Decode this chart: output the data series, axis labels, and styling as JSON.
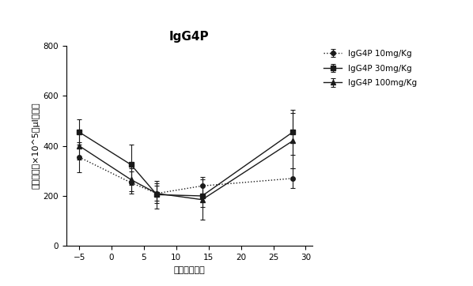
{
  "title": "IgG4P",
  "xlabel": "注入後の日数",
  "ylabel": "血小板数（×10^5／μl血液）",
  "x": [
    -5,
    3,
    7,
    14,
    28
  ],
  "series": [
    {
      "label": "IgG4P 10mg/Kg",
      "y": [
        355,
        253,
        210,
        240,
        270
      ],
      "yerr": [
        60,
        45,
        30,
        35,
        40
      ],
      "color": "#1a1a1a",
      "marker": "o",
      "linestyle": "dotted"
    },
    {
      "label": "IgG4P 30mg/Kg",
      "y": [
        455,
        325,
        205,
        200,
        455
      ],
      "yerr": [
        50,
        80,
        55,
        45,
        90
      ],
      "color": "#1a1a1a",
      "marker": "s",
      "linestyle": "solid"
    },
    {
      "label": "IgG4P 100mg/Kg",
      "y": [
        400,
        265,
        210,
        185,
        420
      ],
      "yerr": [
        55,
        45,
        40,
        80,
        110
      ],
      "color": "#1a1a1a",
      "marker": "^",
      "linestyle": "solid"
    }
  ],
  "xlim": [
    -7,
    31
  ],
  "ylim": [
    0,
    800
  ],
  "yticks": [
    0,
    200,
    400,
    600,
    800
  ],
  "xticks": [
    -5,
    0,
    5,
    10,
    15,
    20,
    25,
    30
  ],
  "background_color": "#ffffff",
  "title_fontsize": 11,
  "label_fontsize": 8,
  "tick_fontsize": 7.5,
  "legend_fontsize": 7.5
}
